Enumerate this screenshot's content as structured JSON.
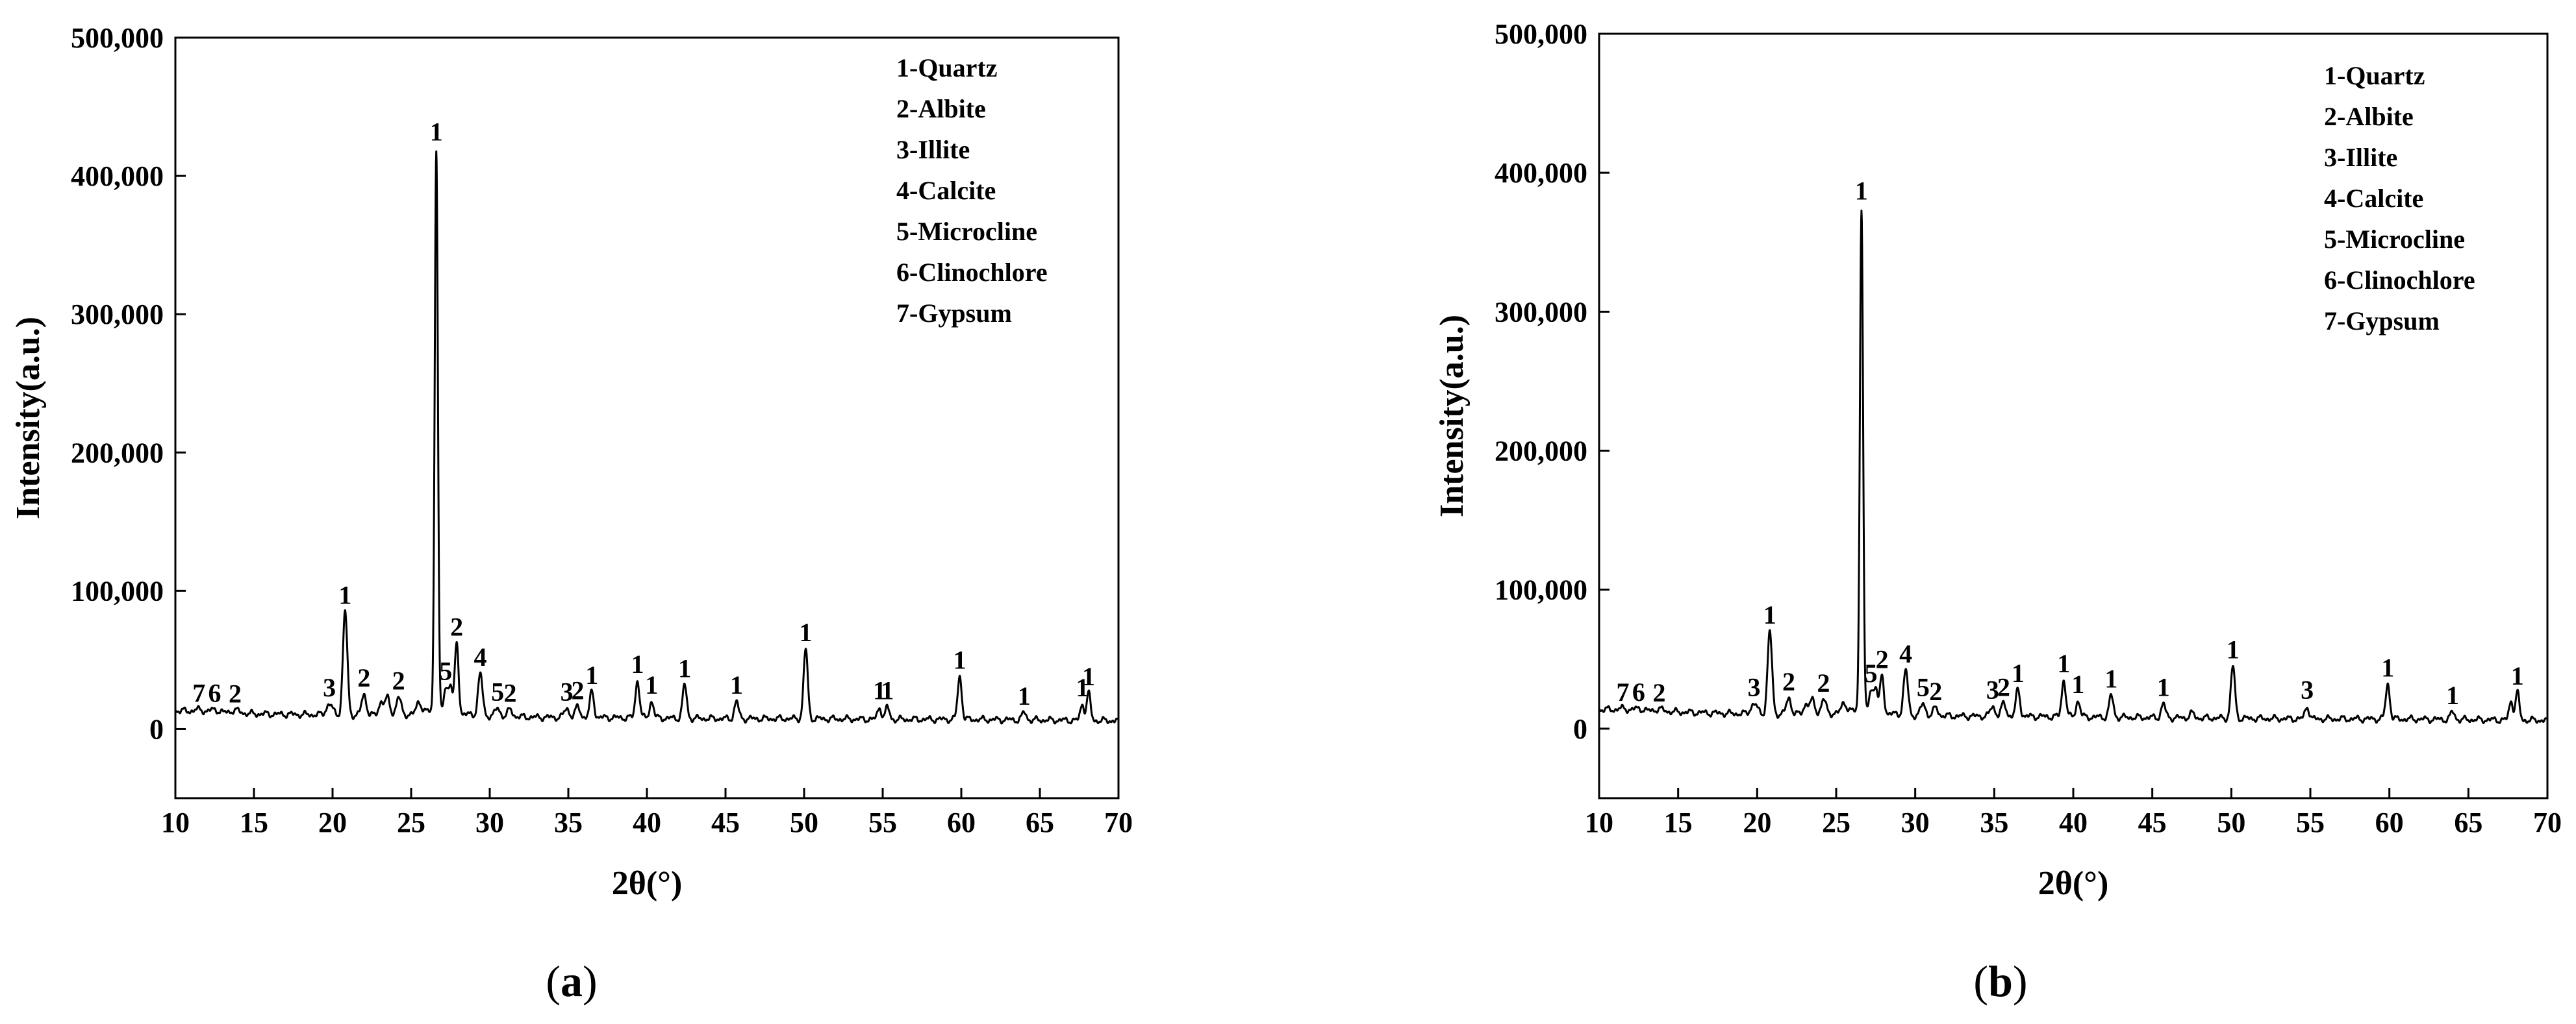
{
  "chart_data": [
    {
      "type": "line",
      "panel": "a",
      "caption": {
        "open": "(",
        "letter": "a",
        "close": ")"
      },
      "xlabel": "2θ(°)",
      "ylabel": "Intensity(a.u.)",
      "xlim": [
        10,
        70
      ],
      "ylim": [
        -50000,
        500000
      ],
      "xticks": [
        "10",
        "15",
        "20",
        "25",
        "30",
        "35",
        "40",
        "45",
        "50",
        "55",
        "60",
        "65",
        "70"
      ],
      "yticks": [
        "0",
        "100,000",
        "200,000",
        "300,000",
        "400,000",
        "500,000"
      ],
      "legend": [
        "1-Quartz",
        "2-Albite",
        "3-Illite",
        "4-Calcite",
        "5-Microcline",
        "6-Clinochlore",
        "7-Gypsum"
      ],
      "baseline": [
        [
          10,
          13500
        ],
        [
          12,
          12000
        ],
        [
          15,
          11000
        ],
        [
          18,
          10500
        ],
        [
          21,
          10000
        ],
        [
          24,
          10000
        ],
        [
          25.5,
          11000
        ],
        [
          26,
          13000
        ],
        [
          27,
          12000
        ],
        [
          28,
          11000
        ],
        [
          30,
          9500
        ],
        [
          33,
          8500
        ],
        [
          36,
          8500
        ],
        [
          40,
          8000
        ],
        [
          45,
          7500
        ],
        [
          50,
          7500
        ],
        [
          55,
          7000
        ],
        [
          60,
          7000
        ],
        [
          65,
          6500
        ],
        [
          70,
          6000
        ]
      ],
      "peaks": [
        {
          "x": 11.5,
          "y": 14000,
          "w": 0.3,
          "label": "7"
        },
        {
          "x": 12.5,
          "y": 14000,
          "w": 0.3,
          "label": "6"
        },
        {
          "x": 13.8,
          "y": 13500,
          "w": 0.3,
          "label": "2"
        },
        {
          "x": 19.8,
          "y": 18000,
          "w": 0.2,
          "label": "3"
        },
        {
          "x": 20.8,
          "y": 85000,
          "w": 0.14,
          "label": "1"
        },
        {
          "x": 22.0,
          "y": 25000,
          "w": 0.15,
          "label": "2"
        },
        {
          "x": 23.1,
          "y": 20000,
          "w": 0.15,
          "label": ""
        },
        {
          "x": 23.5,
          "y": 22000,
          "w": 0.15,
          "label": ""
        },
        {
          "x": 24.2,
          "y": 23000,
          "w": 0.15,
          "label": "2"
        },
        {
          "x": 25.5,
          "y": 20000,
          "w": 0.15,
          "label": ""
        },
        {
          "x": 26.6,
          "y": 420000,
          "w": 0.1,
          "label": "1"
        },
        {
          "x": 27.2,
          "y": 30000,
          "w": 0.12,
          "label": "5"
        },
        {
          "x": 27.5,
          "y": 32000,
          "w": 0.12,
          "label": ""
        },
        {
          "x": 27.9,
          "y": 62000,
          "w": 0.12,
          "label": "2"
        },
        {
          "x": 29.4,
          "y": 40000,
          "w": 0.14,
          "label": "4"
        },
        {
          "x": 30.5,
          "y": 15000,
          "w": 0.15,
          "label": "5"
        },
        {
          "x": 31.3,
          "y": 14000,
          "w": 0.15,
          "label": "2"
        },
        {
          "x": 34.9,
          "y": 15000,
          "w": 0.15,
          "label": "3"
        },
        {
          "x": 35.6,
          "y": 16000,
          "w": 0.15,
          "label": "2"
        },
        {
          "x": 36.5,
          "y": 27000,
          "w": 0.13,
          "label": "1"
        },
        {
          "x": 39.4,
          "y": 35000,
          "w": 0.13,
          "label": "1"
        },
        {
          "x": 40.3,
          "y": 20000,
          "w": 0.13,
          "label": "1"
        },
        {
          "x": 42.4,
          "y": 32000,
          "w": 0.13,
          "label": "1"
        },
        {
          "x": 45.7,
          "y": 20000,
          "w": 0.13,
          "label": "1"
        },
        {
          "x": 50.1,
          "y": 58000,
          "w": 0.13,
          "label": "1"
        },
        {
          "x": 54.8,
          "y": 16000,
          "w": 0.12,
          "label": "1"
        },
        {
          "x": 55.3,
          "y": 16000,
          "w": 0.12,
          "label": "1"
        },
        {
          "x": 59.9,
          "y": 38000,
          "w": 0.13,
          "label": "1"
        },
        {
          "x": 64.0,
          "y": 12000,
          "w": 0.13,
          "label": "1"
        },
        {
          "x": 67.7,
          "y": 18000,
          "w": 0.12,
          "label": "1"
        },
        {
          "x": 68.1,
          "y": 26000,
          "w": 0.12,
          "label": "1"
        }
      ]
    },
    {
      "type": "line",
      "panel": "b",
      "caption": {
        "open": "(",
        "letter": "b",
        "close": ")"
      },
      "xlabel": "2θ(°)",
      "ylabel": "Intensity(a.u.)",
      "xlim": [
        10,
        70
      ],
      "ylim": [
        -50000,
        500000
      ],
      "xticks": [
        "10",
        "15",
        "20",
        "25",
        "30",
        "35",
        "40",
        "45",
        "50",
        "55",
        "60",
        "65",
        "70"
      ],
      "yticks": [
        "0",
        "100,000",
        "200,000",
        "300,000",
        "400,000",
        "500,000"
      ],
      "legend": [
        "1-Quartz",
        "2-Albite",
        "3-Illite",
        "4-Calcite",
        "5-Microcline",
        "6-Clinochlore",
        "7-Gypsum"
      ],
      "baseline": [
        [
          10,
          14000
        ],
        [
          12,
          13000
        ],
        [
          15,
          12000
        ],
        [
          18,
          11000
        ],
        [
          21,
          10500
        ],
        [
          24,
          10500
        ],
        [
          25.5,
          11500
        ],
        [
          26,
          13000
        ],
        [
          27,
          12000
        ],
        [
          28,
          11000
        ],
        [
          30,
          9500
        ],
        [
          33,
          9000
        ],
        [
          36,
          9000
        ],
        [
          40,
          8500
        ],
        [
          45,
          8000
        ],
        [
          50,
          7500
        ],
        [
          55,
          7000
        ],
        [
          60,
          7000
        ],
        [
          65,
          6500
        ],
        [
          70,
          6000
        ]
      ],
      "peaks": [
        {
          "x": 11.5,
          "y": 14500,
          "w": 0.3,
          "label": "7"
        },
        {
          "x": 12.5,
          "y": 14500,
          "w": 0.3,
          "label": "6"
        },
        {
          "x": 13.8,
          "y": 14000,
          "w": 0.3,
          "label": "2"
        },
        {
          "x": 19.8,
          "y": 18000,
          "w": 0.2,
          "label": "3"
        },
        {
          "x": 20.8,
          "y": 70000,
          "w": 0.14,
          "label": "1"
        },
        {
          "x": 22.0,
          "y": 22000,
          "w": 0.15,
          "label": "2"
        },
        {
          "x": 23.1,
          "y": 18000,
          "w": 0.15,
          "label": ""
        },
        {
          "x": 23.5,
          "y": 20000,
          "w": 0.15,
          "label": ""
        },
        {
          "x": 24.2,
          "y": 21000,
          "w": 0.15,
          "label": "2"
        },
        {
          "x": 25.5,
          "y": 19000,
          "w": 0.15,
          "label": ""
        },
        {
          "x": 26.6,
          "y": 375000,
          "w": 0.1,
          "label": "1"
        },
        {
          "x": 27.2,
          "y": 28000,
          "w": 0.12,
          "label": "5"
        },
        {
          "x": 27.5,
          "y": 30000,
          "w": 0.12,
          "label": ""
        },
        {
          "x": 27.9,
          "y": 38000,
          "w": 0.12,
          "label": "2"
        },
        {
          "x": 29.4,
          "y": 42000,
          "w": 0.14,
          "label": "4"
        },
        {
          "x": 30.5,
          "y": 18000,
          "w": 0.15,
          "label": "5"
        },
        {
          "x": 31.3,
          "y": 15000,
          "w": 0.15,
          "label": "2"
        },
        {
          "x": 34.9,
          "y": 16000,
          "w": 0.15,
          "label": "3"
        },
        {
          "x": 35.6,
          "y": 18000,
          "w": 0.15,
          "label": "2"
        },
        {
          "x": 36.5,
          "y": 28000,
          "w": 0.13,
          "label": "1"
        },
        {
          "x": 39.4,
          "y": 35000,
          "w": 0.13,
          "label": "1"
        },
        {
          "x": 40.3,
          "y": 20000,
          "w": 0.13,
          "label": "1"
        },
        {
          "x": 42.4,
          "y": 24000,
          "w": 0.13,
          "label": "1"
        },
        {
          "x": 45.7,
          "y": 18000,
          "w": 0.13,
          "label": "1"
        },
        {
          "x": 47.5,
          "y": 11000,
          "w": 0.15,
          "label": ""
        },
        {
          "x": 50.1,
          "y": 45000,
          "w": 0.13,
          "label": "1"
        },
        {
          "x": 54.8,
          "y": 16000,
          "w": 0.13,
          "label": "3"
        },
        {
          "x": 59.9,
          "y": 32000,
          "w": 0.13,
          "label": "1"
        },
        {
          "x": 64.0,
          "y": 12000,
          "w": 0.13,
          "label": "1"
        },
        {
          "x": 67.7,
          "y": 20000,
          "w": 0.12,
          "label": ""
        },
        {
          "x": 68.1,
          "y": 26000,
          "w": 0.12,
          "label": "1"
        }
      ]
    }
  ]
}
